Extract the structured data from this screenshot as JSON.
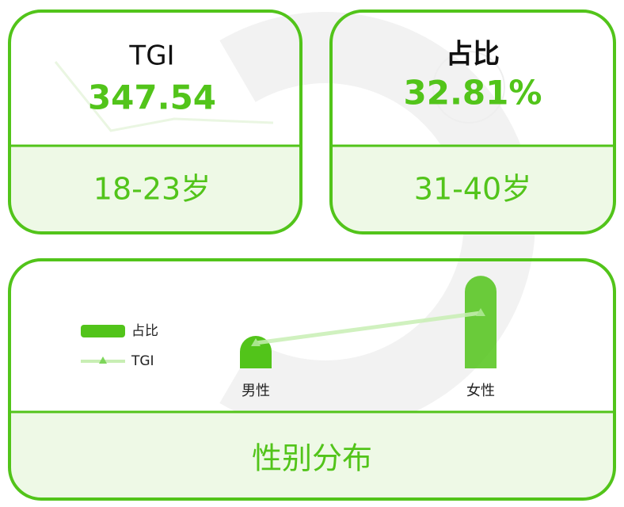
{
  "cards": [
    {
      "title": "TGI",
      "value": "347.54",
      "label": "18-23岁"
    },
    {
      "title": "占比",
      "value": "32.81%",
      "label": "31-40岁"
    }
  ],
  "chart_data": {
    "type": "bar-line",
    "title": "性别分布",
    "categories": [
      "男性",
      "女性"
    ],
    "series": [
      {
        "name": "占比",
        "color": "#52c41a",
        "values": [
          26,
          74
        ]
      },
      {
        "name": "TGI",
        "color": "#c8eeb4",
        "values": [
          54,
          118
        ]
      }
    ]
  }
}
